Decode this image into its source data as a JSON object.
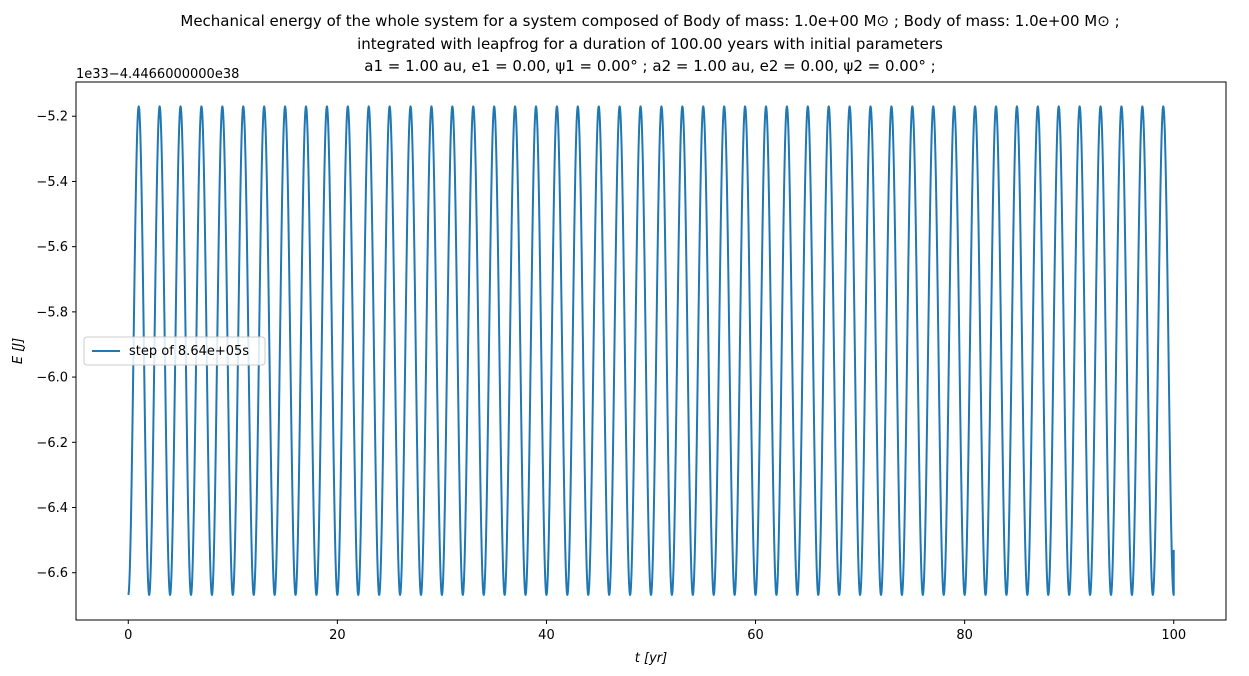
{
  "chart_data": {
    "type": "line",
    "title_lines": [
      "Mechanical energy of the whole system for a system composed of Body of mass: 1.0e+00 M⊙ ; Body of mass: 1.0e+00 M⊙ ;",
      "integrated with leapfrog for a duration of 100.00 years with initial parameters",
      "a1 = 1.00 au, e1 = 0.00, ψ1 = 0.00° ; a2 = 1.00 au, e2 = 0.00, ψ2 = 0.00° ;"
    ],
    "xlabel": "t [yr]",
    "ylabel": "E [J]",
    "y_offset_text": "1e33−4.4466000000e38",
    "xlim": [
      -5,
      105
    ],
    "ylim": [
      -6.745,
      -5.095
    ],
    "x_ticks": [
      0,
      20,
      40,
      60,
      80,
      100
    ],
    "x_tick_labels": [
      "0",
      "20",
      "40",
      "60",
      "80",
      "100"
    ],
    "y_ticks": [
      -5.2,
      -5.4,
      -5.6,
      -5.8,
      -6.0,
      -6.2,
      -6.4,
      -6.6
    ],
    "y_tick_labels": [
      "−5.2",
      "−5.4",
      "−5.6",
      "−5.8",
      "−6.0",
      "−6.2",
      "−6.4",
      "−6.6"
    ],
    "grid": false,
    "legend_position": "center-left",
    "series": [
      {
        "name": "step of 8.64e+05s",
        "color": "#1f77b4",
        "x_start": 0,
        "x_end": 100,
        "y_min": -6.668,
        "y_max": -5.17,
        "period_yr": 2.0,
        "first_peak_yr": 1.0,
        "y_end": -6.53
      }
    ]
  }
}
